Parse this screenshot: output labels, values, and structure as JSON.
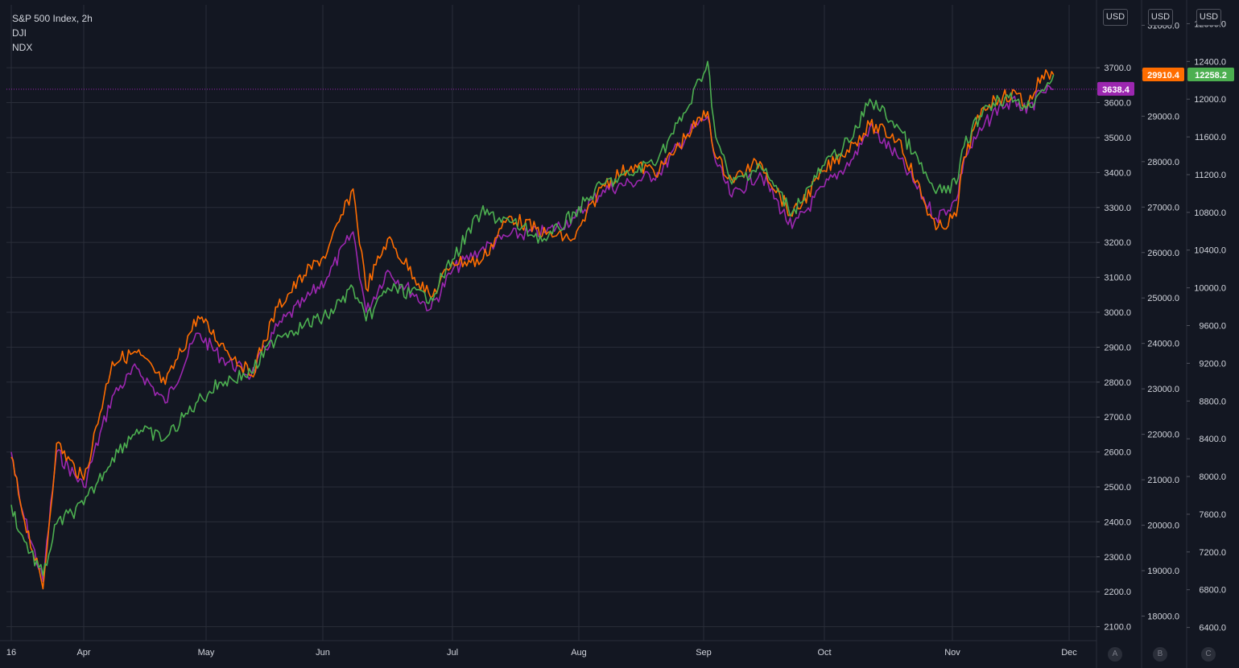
{
  "legend": {
    "title": "S&P 500 Index, 2h",
    "line2": "DJI",
    "line3": "NDX"
  },
  "axis_buttons": {
    "a": "A",
    "b": "B",
    "c": "C"
  },
  "currency_labels": {
    "a": "USD",
    "b": "USD",
    "c": "USD"
  },
  "colors": {
    "background": "#131722",
    "grid": "#2a2e39",
    "spx": "#9c27b0",
    "dji": "#ff6d00",
    "ndx": "#4caf50",
    "text": "#d1d4dc"
  },
  "chart_data": {
    "type": "line",
    "title": "S&P 500 Index, 2h",
    "x_tick_labels": [
      "16",
      "Apr",
      "May",
      "Jun",
      "Jul",
      "Aug",
      "Sep",
      "Oct",
      "Nov",
      "Dec"
    ],
    "axes": {
      "A": {
        "currency": "USD",
        "range": [
          2060,
          3880
        ],
        "ticks": [
          2100,
          2200,
          2300,
          2400,
          2500,
          2600,
          2700,
          2800,
          2900,
          3000,
          3100,
          3200,
          3300,
          3400,
          3500,
          3600,
          3700
        ],
        "labels": [
          "2100.0",
          "2200.0",
          "2300.0",
          "2400.0",
          "2500.0",
          "2600.0",
          "2700.0",
          "2800.0",
          "2900.0",
          "3000.0",
          "3100.0",
          "3200.0",
          "3300.0",
          "3400.0",
          "3500.0",
          "3600.0",
          "3700.0"
        ]
      },
      "B": {
        "currency": "USD",
        "range": [
          17460,
          31450
        ],
        "ticks": [
          18000,
          19000,
          20000,
          21000,
          22000,
          23000,
          24000,
          25000,
          26000,
          27000,
          28000,
          29000,
          30000,
          31000
        ],
        "labels": [
          "18000.0",
          "19000.0",
          "20000.0",
          "21000.0",
          "22000.0",
          "23000.0",
          "24000.0",
          "25000.0",
          "26000.0",
          "27000.0",
          "28000.0",
          "29000.0",
          "30000.0",
          "31000.0"
        ]
      },
      "C": {
        "currency": "USD",
        "range": [
          6260,
          13000
        ],
        "ticks": [
          6400,
          6800,
          7200,
          7600,
          8000,
          8400,
          8800,
          9200,
          9600,
          10000,
          10400,
          10800,
          11200,
          11600,
          12000,
          12400,
          12800
        ],
        "labels": [
          "6400.0",
          "6800.0",
          "7200.0",
          "7600.0",
          "8000.0",
          "8400.0",
          "8800.0",
          "9200.0",
          "9600.0",
          "10000.0",
          "10400.0",
          "10800.0",
          "11200.0",
          "11600.0",
          "12000.0",
          "12400.0",
          "12800.0"
        ]
      }
    },
    "grid": true,
    "series": [
      {
        "name": "S&P 500 Index",
        "axis": "A",
        "last_value": 3638.4,
        "last_label": "3638.4",
        "x": [
          "2020-03-16",
          "2020-03-18",
          "2020-03-23",
          "2020-03-26",
          "2020-04-01",
          "2020-04-08",
          "2020-04-14",
          "2020-04-21",
          "2020-04-29",
          "2020-05-05",
          "2020-05-13",
          "2020-05-20",
          "2020-05-27",
          "2020-06-02",
          "2020-06-08",
          "2020-06-11",
          "2020-06-16",
          "2020-06-26",
          "2020-07-01",
          "2020-07-08",
          "2020-07-15",
          "2020-07-24",
          "2020-07-31",
          "2020-08-07",
          "2020-08-14",
          "2020-08-21",
          "2020-08-28",
          "2020-09-02",
          "2020-09-04",
          "2020-09-08",
          "2020-09-15",
          "2020-09-23",
          "2020-10-01",
          "2020-10-08",
          "2020-10-12",
          "2020-10-19",
          "2020-10-28",
          "2020-11-02",
          "2020-11-04",
          "2020-11-09",
          "2020-11-13",
          "2020-11-18",
          "2020-11-20",
          "2020-11-24",
          "2020-11-27"
        ],
        "values": [
          2600,
          2450,
          2230,
          2600,
          2500,
          2760,
          2840,
          2740,
          2940,
          2870,
          2820,
          2960,
          3030,
          3100,
          3230,
          3000,
          3120,
          3010,
          3120,
          3180,
          3220,
          3230,
          3270,
          3350,
          3370,
          3400,
          3510,
          3560,
          3430,
          3330,
          3400,
          3240,
          3360,
          3440,
          3530,
          3440,
          3270,
          3320,
          3440,
          3530,
          3590,
          3600,
          3570,
          3630,
          3638.4
        ]
      },
      {
        "name": "DJI",
        "axis": "B",
        "last_value": 29910.4,
        "last_label": "29910.4",
        "x": [
          "2020-03-16",
          "2020-03-18",
          "2020-03-23",
          "2020-03-26",
          "2020-04-01",
          "2020-04-08",
          "2020-04-14",
          "2020-04-21",
          "2020-04-29",
          "2020-05-05",
          "2020-05-13",
          "2020-05-20",
          "2020-05-27",
          "2020-06-02",
          "2020-06-08",
          "2020-06-11",
          "2020-06-16",
          "2020-06-26",
          "2020-07-01",
          "2020-07-08",
          "2020-07-15",
          "2020-07-24",
          "2020-07-31",
          "2020-08-07",
          "2020-08-14",
          "2020-08-21",
          "2020-08-28",
          "2020-09-02",
          "2020-09-04",
          "2020-09-08",
          "2020-09-15",
          "2020-09-23",
          "2020-10-01",
          "2020-10-08",
          "2020-10-12",
          "2020-10-19",
          "2020-10-28",
          "2020-11-02",
          "2020-11-04",
          "2020-11-09",
          "2020-11-13",
          "2020-11-18",
          "2020-11-20",
          "2020-11-24",
          "2020-11-27"
        ],
        "values": [
          21500,
          20500,
          18600,
          21800,
          21000,
          23600,
          23800,
          23100,
          24600,
          24000,
          23300,
          24800,
          25500,
          26000,
          27400,
          25200,
          26300,
          25000,
          25800,
          25800,
          26800,
          26400,
          26300,
          27500,
          27900,
          27800,
          28600,
          29100,
          28100,
          27600,
          28000,
          26800,
          27800,
          28400,
          28800,
          28500,
          26500,
          26800,
          28100,
          29200,
          29400,
          29500,
          29200,
          29900,
          29910.4
        ]
      },
      {
        "name": "NDX",
        "axis": "C",
        "last_value": 12258.2,
        "last_label": "12258.2",
        "x": [
          "2020-03-16",
          "2020-03-18",
          "2020-03-23",
          "2020-03-26",
          "2020-04-01",
          "2020-04-08",
          "2020-04-14",
          "2020-04-21",
          "2020-04-29",
          "2020-05-05",
          "2020-05-13",
          "2020-05-20",
          "2020-05-27",
          "2020-06-02",
          "2020-06-08",
          "2020-06-11",
          "2020-06-16",
          "2020-06-26",
          "2020-07-01",
          "2020-07-08",
          "2020-07-15",
          "2020-07-24",
          "2020-07-31",
          "2020-08-07",
          "2020-08-14",
          "2020-08-21",
          "2020-08-28",
          "2020-09-02",
          "2020-09-04",
          "2020-09-08",
          "2020-09-15",
          "2020-09-23",
          "2020-10-01",
          "2020-10-08",
          "2020-10-12",
          "2020-10-19",
          "2020-10-28",
          "2020-11-02",
          "2020-11-04",
          "2020-11-09",
          "2020-11-13",
          "2020-11-18",
          "2020-11-20",
          "2020-11-24",
          "2020-11-27"
        ],
        "values": [
          7700,
          7400,
          6950,
          7500,
          7700,
          8200,
          8500,
          8400,
          8800,
          9000,
          9100,
          9500,
          9600,
          9700,
          10000,
          9650,
          10000,
          9900,
          10300,
          10800,
          10700,
          10500,
          10800,
          11100,
          11200,
          11400,
          11900,
          12400,
          11600,
          11100,
          11300,
          10800,
          11300,
          11600,
          12000,
          11700,
          11000,
          11100,
          11500,
          11900,
          12000,
          12000,
          11900,
          12100,
          12258.2
        ]
      }
    ]
  }
}
